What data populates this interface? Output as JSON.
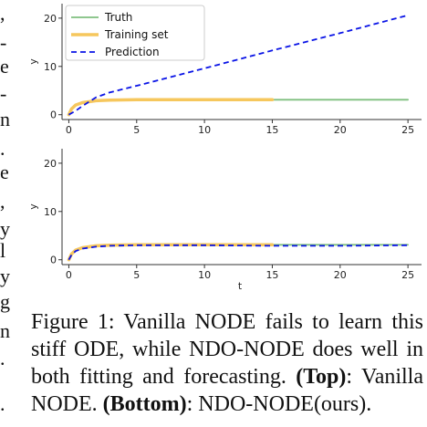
{
  "margin_fragments": [
    ",",
    "-",
    "e",
    "-",
    "n",
    ".",
    "e",
    ",",
    "y",
    "l",
    "y",
    "g",
    "n",
    ".",
    "."
  ],
  "caption": {
    "fig_label": "Figure 1:",
    "text1": " Vanilla NODE fails to learn this stiff ODE, while NDO-NODE does well in both fitting and forecasting. ",
    "top_label": "(Top)",
    "text2": ": Vanilla NODE. ",
    "bottom_label": "(Bottom)",
    "text3": ": NDO-NODE(ours)."
  },
  "colors": {
    "truth": "#7fbf7f",
    "training": "#f6c75d",
    "prediction": "#0a14e6"
  },
  "chart_data": [
    {
      "type": "line",
      "title": "",
      "xlabel": "",
      "ylabel": "y",
      "xlim": [
        -0.5,
        26
      ],
      "ylim": [
        -1,
        23
      ],
      "xticks": [
        0,
        5,
        10,
        15,
        20,
        25
      ],
      "xtick_labels": [
        "0",
        "5",
        "10",
        "15",
        "20",
        "25"
      ],
      "yticks": [
        0,
        10,
        20
      ],
      "ytick_labels": [
        "0",
        "10",
        "20"
      ],
      "legend_position": "top-left",
      "series": [
        {
          "name": "Truth",
          "color_key": "truth",
          "x": [
            0,
            0.2,
            0.5,
            1,
            2,
            3,
            5,
            10,
            15,
            20,
            25
          ],
          "y": [
            0,
            1.2,
            2.0,
            2.5,
            2.9,
            3.0,
            3.1,
            3.1,
            3.1,
            3.1,
            3.1
          ]
        },
        {
          "name": "Training set",
          "color_key": "training",
          "x": [
            0,
            0.2,
            0.5,
            1,
            2,
            3,
            5,
            10,
            15
          ],
          "y": [
            0,
            1.2,
            2.0,
            2.5,
            2.9,
            3.0,
            3.1,
            3.1,
            3.1
          ]
        },
        {
          "name": "Prediction",
          "color_key": "prediction",
          "dashed": true,
          "x": [
            0,
            0.5,
            1,
            2,
            3,
            5,
            10,
            15,
            20,
            25
          ],
          "y": [
            0,
            0.8,
            1.8,
            3.6,
            4.6,
            6.0,
            9.6,
            13.3,
            16.9,
            20.6
          ]
        }
      ]
    },
    {
      "type": "line",
      "title": "",
      "xlabel": "t",
      "ylabel": "y",
      "xlim": [
        -0.5,
        26
      ],
      "ylim": [
        -1,
        23
      ],
      "xticks": [
        0,
        5,
        10,
        15,
        20,
        25
      ],
      "xtick_labels": [
        "0",
        "5",
        "10",
        "15",
        "20",
        "25"
      ],
      "yticks": [
        0,
        10,
        20
      ],
      "ytick_labels": [
        "0",
        "10",
        "20"
      ],
      "series": [
        {
          "name": "Truth",
          "color_key": "truth",
          "x": [
            0,
            0.2,
            0.5,
            1,
            2,
            3,
            5,
            10,
            15,
            20,
            25
          ],
          "y": [
            0,
            1.2,
            2.0,
            2.5,
            2.9,
            3.0,
            3.1,
            3.1,
            3.1,
            3.1,
            3.1
          ]
        },
        {
          "name": "Training set",
          "color_key": "training",
          "x": [
            0,
            0.2,
            0.5,
            1,
            2,
            3,
            5,
            10,
            15
          ],
          "y": [
            0,
            1.2,
            2.0,
            2.5,
            2.9,
            3.0,
            3.1,
            3.1,
            3.1
          ]
        },
        {
          "name": "Prediction",
          "color_key": "prediction",
          "dashed": true,
          "x": [
            0,
            0.2,
            0.5,
            1,
            2,
            3,
            5,
            10,
            15,
            20,
            25
          ],
          "y": [
            0,
            1.0,
            1.8,
            2.3,
            2.7,
            2.9,
            3.0,
            3.0,
            2.9,
            2.9,
            3.0
          ]
        }
      ]
    }
  ]
}
